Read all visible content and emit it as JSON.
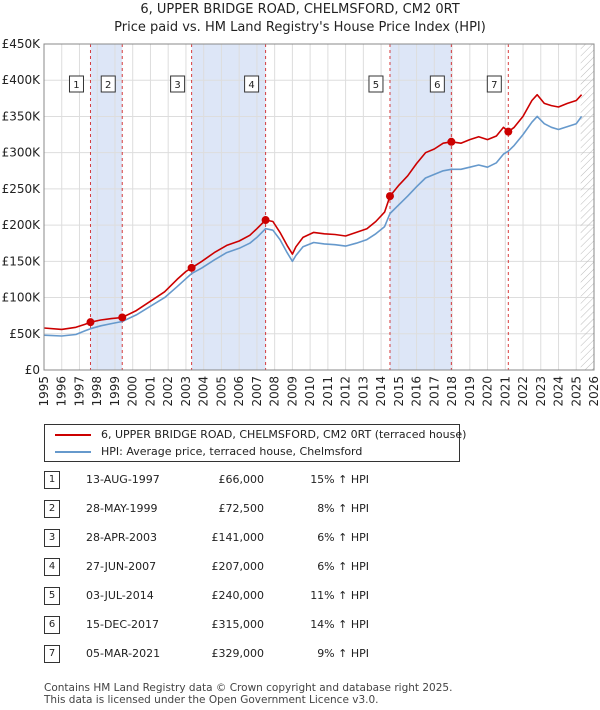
{
  "header": {
    "title": "6, UPPER BRIDGE ROAD, CHELMSFORD, CM2 0RT",
    "subtitle": "Price paid vs. HM Land Registry's House Price Index (HPI)"
  },
  "colors": {
    "property": "#cc0000",
    "hpi": "#6699cc",
    "band": "#dde6f7"
  },
  "legend": {
    "property_label": "6, UPPER BRIDGE ROAD, CHELMSFORD, CM2 0RT (terraced house)",
    "hpi_label": "HPI: Average price, terraced house, Chelmsford"
  },
  "chart_data": {
    "type": "line",
    "title": "6, UPPER BRIDGE ROAD, CHELMSFORD, CM2 0RT",
    "xlim": [
      1995,
      2026
    ],
    "ylim": [
      0,
      450000
    ],
    "x_ticks": [
      "1995",
      "1996",
      "1997",
      "1998",
      "1999",
      "2000",
      "2001",
      "2002",
      "2003",
      "2004",
      "2005",
      "2006",
      "2007",
      "2008",
      "2009",
      "2010",
      "2011",
      "2012",
      "2013",
      "2014",
      "2015",
      "2016",
      "2017",
      "2018",
      "2019",
      "2020",
      "2021",
      "2022",
      "2023",
      "2024",
      "2025",
      "2026"
    ],
    "y_ticks": [
      {
        "value": 0,
        "label": "£0"
      },
      {
        "value": 50000,
        "label": "£50K"
      },
      {
        "value": 100000,
        "label": "£100K"
      },
      {
        "value": 150000,
        "label": "£150K"
      },
      {
        "value": 200000,
        "label": "£200K"
      },
      {
        "value": 250000,
        "label": "£250K"
      },
      {
        "value": 300000,
        "label": "£300K"
      },
      {
        "value": 350000,
        "label": "£350K"
      },
      {
        "value": 400000,
        "label": "£400K"
      },
      {
        "value": 450000,
        "label": "£450K"
      }
    ],
    "series": [
      {
        "name": "6, UPPER BRIDGE ROAD, CHELMSFORD, CM2 0RT (terraced house)",
        "x": [
          1995.0,
          1996.0,
          1996.8,
          1997.3,
          1997.62,
          1998.2,
          1998.8,
          1999.41,
          2000.2,
          2001.0,
          2001.8,
          2002.5,
          2003.0,
          2003.32,
          2003.9,
          2004.6,
          2005.3,
          2006.0,
          2006.6,
          2007.0,
          2007.49,
          2007.9,
          2008.3,
          2008.7,
          2009.0,
          2009.2,
          2009.6,
          2010.2,
          2010.8,
          2011.4,
          2012.0,
          2012.6,
          2013.2,
          2013.7,
          2014.2,
          2014.5,
          2015.0,
          2015.5,
          2016.0,
          2016.5,
          2017.0,
          2017.5,
          2017.96,
          2018.5,
          2019.0,
          2019.5,
          2020.0,
          2020.5,
          2020.9,
          2021.17,
          2021.5,
          2022.0,
          2022.5,
          2022.8,
          2023.2,
          2023.6,
          2024.0,
          2024.5,
          2025.0,
          2025.3
        ],
        "y": [
          58000,
          56000,
          59000,
          63000,
          66000,
          69000,
          71000,
          72500,
          82000,
          95000,
          108000,
          125000,
          136000,
          141000,
          150000,
          162000,
          172000,
          178000,
          186000,
          195000,
          207000,
          205000,
          190000,
          172000,
          160000,
          170000,
          183000,
          190000,
          188000,
          187000,
          185000,
          190000,
          195000,
          205000,
          218000,
          240000,
          255000,
          268000,
          285000,
          300000,
          305000,
          313000,
          315000,
          313000,
          318000,
          322000,
          318000,
          323000,
          335000,
          329000,
          335000,
          350000,
          372000,
          380000,
          368000,
          365000,
          363000,
          368000,
          372000,
          380000
        ]
      },
      {
        "name": "HPI: Average price, terraced house, Chelmsford",
        "x": [
          1995.0,
          1996.0,
          1996.8,
          1997.3,
          1997.62,
          1998.2,
          1998.8,
          1999.41,
          2000.2,
          2001.0,
          2001.8,
          2002.5,
          2003.0,
          2003.32,
          2003.9,
          2004.6,
          2005.3,
          2006.0,
          2006.6,
          2007.0,
          2007.49,
          2007.9,
          2008.3,
          2008.7,
          2009.0,
          2009.2,
          2009.6,
          2010.2,
          2010.8,
          2011.4,
          2012.0,
          2012.6,
          2013.2,
          2013.7,
          2014.2,
          2014.5,
          2015.0,
          2015.5,
          2016.0,
          2016.5,
          2017.0,
          2017.5,
          2017.96,
          2018.5,
          2019.0,
          2019.5,
          2020.0,
          2020.5,
          2020.9,
          2021.17,
          2021.5,
          2022.0,
          2022.5,
          2022.8,
          2023.2,
          2023.6,
          2024.0,
          2024.5,
          2025.0,
          2025.3
        ],
        "y": [
          48000,
          47000,
          49000,
          54000,
          57000,
          61000,
          64000,
          67000,
          76000,
          88000,
          100000,
          115000,
          126000,
          133000,
          141000,
          152000,
          162000,
          168000,
          175000,
          183000,
          195000,
          193000,
          180000,
          162000,
          150000,
          158000,
          170000,
          176000,
          174000,
          173000,
          171000,
          175000,
          180000,
          188000,
          198000,
          216000,
          228000,
          240000,
          253000,
          265000,
          270000,
          275000,
          277000,
          277000,
          280000,
          283000,
          280000,
          286000,
          298000,
          302000,
          310000,
          325000,
          342000,
          350000,
          340000,
          335000,
          332000,
          336000,
          340000,
          350000
        ]
      }
    ],
    "sales": [
      {
        "num": "1",
        "x": 1997.62,
        "price": 66000,
        "date": "13-AUG-1997",
        "price_label": "£66,000",
        "hpi": "15% ↑ HPI"
      },
      {
        "num": "2",
        "x": 1999.41,
        "price": 72500,
        "date": "28-MAY-1999",
        "price_label": "£72,500",
        "hpi": "8% ↑ HPI"
      },
      {
        "num": "3",
        "x": 2003.32,
        "price": 141000,
        "date": "28-APR-2003",
        "price_label": "£141,000",
        "hpi": "6% ↑ HPI"
      },
      {
        "num": "4",
        "x": 2007.49,
        "price": 207000,
        "date": "27-JUN-2007",
        "price_label": "£207,000",
        "hpi": "6% ↑ HPI"
      },
      {
        "num": "5",
        "x": 2014.5,
        "price": 240000,
        "date": "03-JUL-2014",
        "price_label": "£240,000",
        "hpi": "11% ↑ HPI"
      },
      {
        "num": "6",
        "x": 2017.96,
        "price": 315000,
        "date": "15-DEC-2017",
        "price_label": "£315,000",
        "hpi": "14% ↑ HPI"
      },
      {
        "num": "7",
        "x": 2021.17,
        "price": 329000,
        "date": "05-MAR-2021",
        "price_label": "£329,000",
        "hpi": "9% ↑ HPI"
      }
    ],
    "shaded_ranges": [
      [
        1997.62,
        1999.41
      ],
      [
        2003.32,
        2007.49
      ],
      [
        2014.5,
        2017.96
      ]
    ],
    "data_end": 2025.25
  },
  "footer": {
    "line1": "Contains HM Land Registry data © Crown copyright and database right 2025.",
    "line2": "This data is licensed under the Open Government Licence v3.0."
  }
}
